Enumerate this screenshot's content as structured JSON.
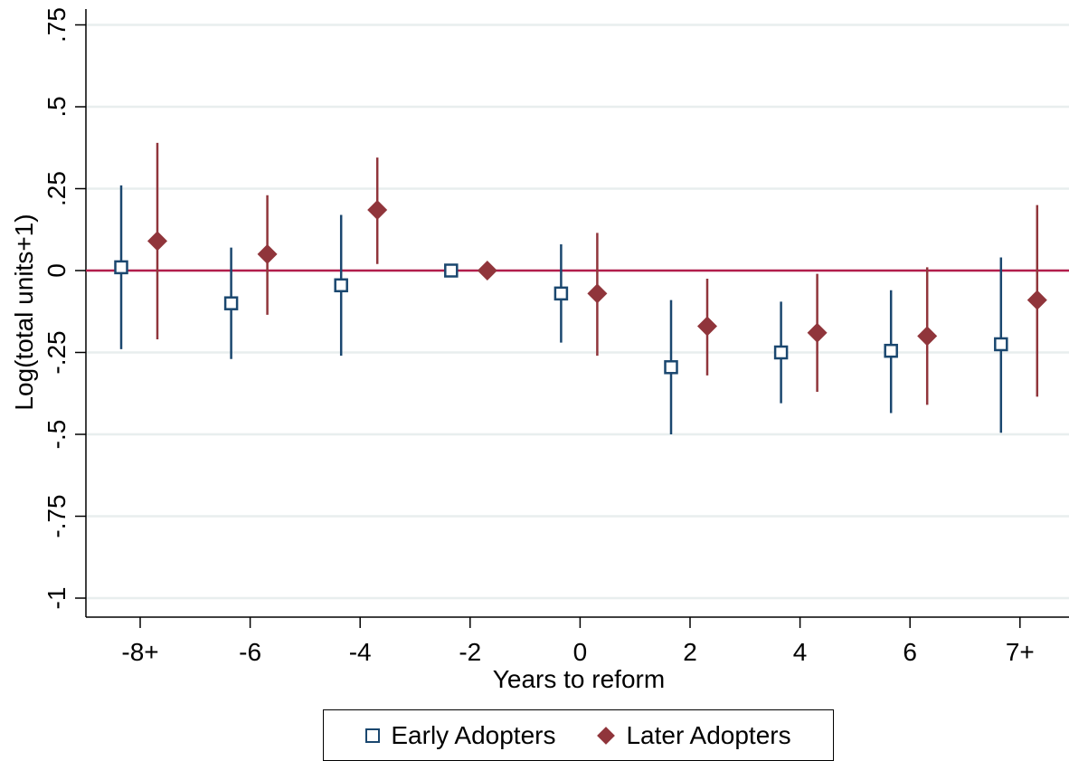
{
  "chart_data": {
    "type": "scatter",
    "subtype": "coefficient-plot-with-confidence-intervals",
    "xlabel": "Years to reform",
    "ylabel": "Log(total units+1)",
    "categories": [
      "-8+",
      "-6",
      "-4",
      "-2",
      "0",
      "2",
      "4",
      "6",
      "7+"
    ],
    "ylim": [
      -1.05,
      0.8
    ],
    "yticks": [
      0.75,
      0.5,
      0.25,
      0,
      -0.25,
      -0.5,
      -0.75,
      -1
    ],
    "ytick_labels": [
      ".75",
      ".5",
      ".25",
      "0",
      "-.25",
      "-.5",
      "-.75",
      "-1"
    ],
    "reference_line": 0,
    "grid": true,
    "legend_position": "bottom",
    "series": [
      {
        "name": "Early Adopters",
        "marker": "hollow-square",
        "color": "#1a476f",
        "points": [
          {
            "x": "-8+",
            "y": 0.01,
            "lo": -0.24,
            "hi": 0.26
          },
          {
            "x": "-6",
            "y": -0.1,
            "lo": -0.27,
            "hi": 0.07
          },
          {
            "x": "-4",
            "y": -0.045,
            "lo": -0.26,
            "hi": 0.17
          },
          {
            "x": "-2",
            "y": 0.0,
            "lo": 0.0,
            "hi": 0.0
          },
          {
            "x": "0",
            "y": -0.07,
            "lo": -0.22,
            "hi": 0.08
          },
          {
            "x": "2",
            "y": -0.295,
            "lo": -0.5,
            "hi": -0.09
          },
          {
            "x": "4",
            "y": -0.25,
            "lo": -0.405,
            "hi": -0.095
          },
          {
            "x": "6",
            "y": -0.245,
            "lo": -0.435,
            "hi": -0.06
          },
          {
            "x": "7+",
            "y": -0.225,
            "lo": -0.495,
            "hi": 0.04
          }
        ]
      },
      {
        "name": "Later Adopters",
        "marker": "solid-diamond",
        "color": "#90353b",
        "points": [
          {
            "x": "-8+",
            "y": 0.09,
            "lo": -0.21,
            "hi": 0.39
          },
          {
            "x": "-6",
            "y": 0.05,
            "lo": -0.135,
            "hi": 0.23
          },
          {
            "x": "-4",
            "y": 0.185,
            "lo": 0.02,
            "hi": 0.345
          },
          {
            "x": "-2",
            "y": 0.0,
            "lo": 0.0,
            "hi": 0.0
          },
          {
            "x": "0",
            "y": -0.07,
            "lo": -0.26,
            "hi": 0.115
          },
          {
            "x": "2",
            "y": -0.17,
            "lo": -0.32,
            "hi": -0.025
          },
          {
            "x": "4",
            "y": -0.19,
            "lo": -0.37,
            "hi": -0.01
          },
          {
            "x": "6",
            "y": -0.2,
            "lo": -0.41,
            "hi": 0.01
          },
          {
            "x": "7+",
            "y": -0.09,
            "lo": -0.385,
            "hi": 0.2
          }
        ]
      }
    ]
  },
  "legend": {
    "early_label": "Early Adopters",
    "later_label": "Later Adopters"
  }
}
